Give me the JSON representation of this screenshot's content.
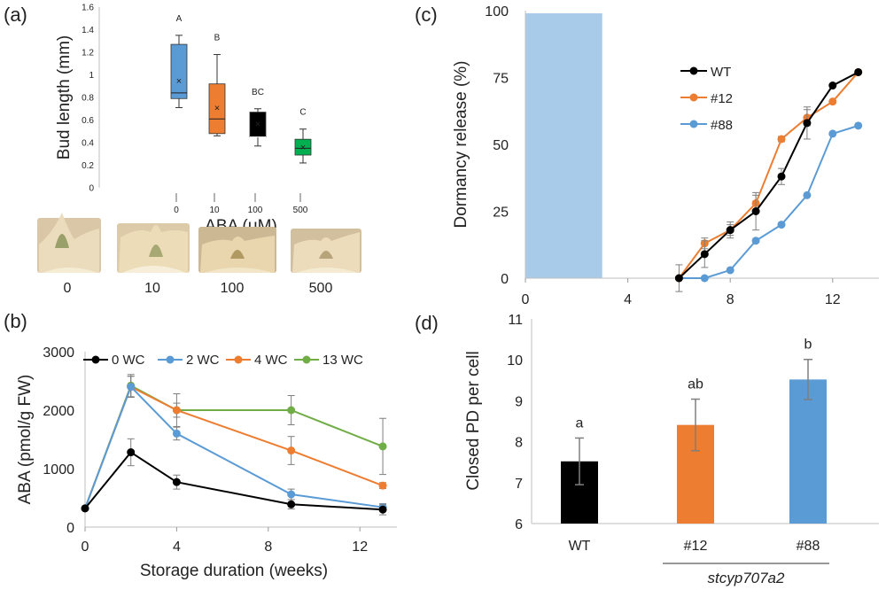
{
  "colors": {
    "black": "#000000",
    "orange": "#ed7d31",
    "blue": "#5b9bd5",
    "green": "#70ad47",
    "blue_box": "#5b9bd5",
    "green_box": "#00b050",
    "storage_band": "#a9cbea",
    "errorbar": "#7f7f7f"
  },
  "panels": {
    "a": "(a)",
    "b": "(b)",
    "c": "(c)",
    "d": "(d)"
  },
  "photo_labels": [
    "0",
    "10",
    "100",
    "500"
  ],
  "chart_data": [
    {
      "panel": "a",
      "type": "box",
      "ylabel": "Bud length (mm)",
      "xlabel": "ABA (μM)",
      "ylim": [
        0,
        1.6
      ],
      "yticks": [
        "0",
        "0.2",
        "0.4",
        "0.6",
        "0.8",
        "1",
        "1.2",
        "1.4",
        "1.6"
      ],
      "grid": false,
      "categories": [
        "0",
        "10",
        "100",
        "500"
      ],
      "boxes": [
        {
          "category": "0",
          "min": 0.71,
          "q1": 0.79,
          "median": 0.84,
          "q3": 1.27,
          "max": 1.35,
          "mean": 0.95,
          "color": "#5b9bd5",
          "letter": "A"
        },
        {
          "category": "10",
          "min": 0.46,
          "q1": 0.48,
          "median": 0.61,
          "q3": 0.92,
          "max": 1.18,
          "mean": 0.71,
          "color": "#ed7d31",
          "letter": "B"
        },
        {
          "category": "100",
          "min": 0.37,
          "q1": 0.45,
          "median": 0.45,
          "q3": 0.67,
          "max": 0.7,
          "mean": 0.57,
          "color": "#000000",
          "letter": "BC"
        },
        {
          "category": "500",
          "min": 0.22,
          "q1": 0.29,
          "median": 0.35,
          "q3": 0.43,
          "max": 0.52,
          "mean": 0.36,
          "color": "#00b050",
          "letter": "C"
        }
      ]
    },
    {
      "panel": "b",
      "type": "line",
      "xlabel": "Storage duration (weeks)",
      "ylabel": "ABA (pmol/g FW)",
      "xlim": [
        0,
        14
      ],
      "ylim": [
        0,
        3000
      ],
      "xticks": [
        0,
        4,
        8,
        12
      ],
      "yticks": [
        0,
        1000,
        2000,
        3000
      ],
      "legend_position": "top",
      "series": [
        {
          "name": "0 WC",
          "color": "#000000",
          "x": [
            0,
            2,
            4,
            9,
            13
          ],
          "y": [
            320,
            1280,
            770,
            390,
            300
          ],
          "err": [
            0,
            230,
            120,
            80,
            90
          ]
        },
        {
          "name": "2 WC",
          "color": "#5b9bd5",
          "x": [
            0,
            2,
            4,
            9,
            13
          ],
          "y": [
            320,
            2400,
            1600,
            560,
            340
          ],
          "err": [
            0,
            180,
            110,
            90,
            60
          ]
        },
        {
          "name": "4 WC",
          "color": "#ed7d31",
          "x": [
            0,
            2,
            4,
            9,
            13
          ],
          "y": [
            320,
            2400,
            2000,
            1310,
            710
          ],
          "err": [
            0,
            180,
            120,
            240,
            50
          ]
        },
        {
          "name": "13 WC",
          "color": "#70ad47",
          "x": [
            0,
            2,
            4,
            9,
            13
          ],
          "y": [
            320,
            2420,
            2000,
            2000,
            1380
          ],
          "err": [
            0,
            190,
            280,
            250,
            480
          ]
        }
      ]
    },
    {
      "panel": "c",
      "type": "line",
      "ylabel": "Dormancy release (%)",
      "xlim": [
        0,
        14
      ],
      "ylim": [
        0,
        100
      ],
      "xticks": [
        0,
        4,
        8,
        12
      ],
      "yticks": [
        0,
        25,
        50,
        75,
        100
      ],
      "legend_position": "right",
      "shaded_band": {
        "x0": 0,
        "x1": 3,
        "y1": 99
      },
      "series": [
        {
          "name": "WT",
          "color": "#000000",
          "x": [
            6,
            7,
            8,
            9,
            10,
            11,
            12,
            13
          ],
          "y": [
            0,
            9,
            18,
            25,
            38,
            58,
            72,
            77
          ],
          "err": [
            5,
            5,
            3,
            7,
            3,
            6,
            0,
            0
          ]
        },
        {
          "name": "#12",
          "color": "#ed7d31",
          "x": [
            6,
            7,
            8,
            9,
            10,
            11,
            12,
            13
          ],
          "y": [
            0,
            13,
            18,
            28,
            52,
            60,
            66,
            77
          ],
          "err": [
            0,
            2,
            2,
            3,
            1,
            3,
            0,
            0
          ]
        },
        {
          "name": "#88",
          "color": "#5b9bd5",
          "x": [
            6,
            7,
            8,
            9,
            10,
            11,
            12,
            13
          ],
          "y": [
            0,
            0,
            3,
            14,
            20,
            31,
            54,
            57
          ],
          "err": [
            0,
            0,
            0,
            0,
            0,
            0,
            0,
            0
          ]
        }
      ]
    },
    {
      "panel": "d",
      "type": "bar",
      "ylabel": "Closed PD per cell",
      "ylim": [
        6,
        11
      ],
      "yticks": [
        6,
        7,
        8,
        9,
        10,
        11
      ],
      "categories": [
        "WT",
        "#12",
        "#88"
      ],
      "values": [
        7.52,
        8.41,
        9.52
      ],
      "errors": [
        0.57,
        0.63,
        0.49
      ],
      "letters": [
        "a",
        "ab",
        "b"
      ],
      "bar_colors": [
        "#000000",
        "#ed7d31",
        "#5b9bd5"
      ],
      "group_label": "stcyp707a2"
    }
  ]
}
